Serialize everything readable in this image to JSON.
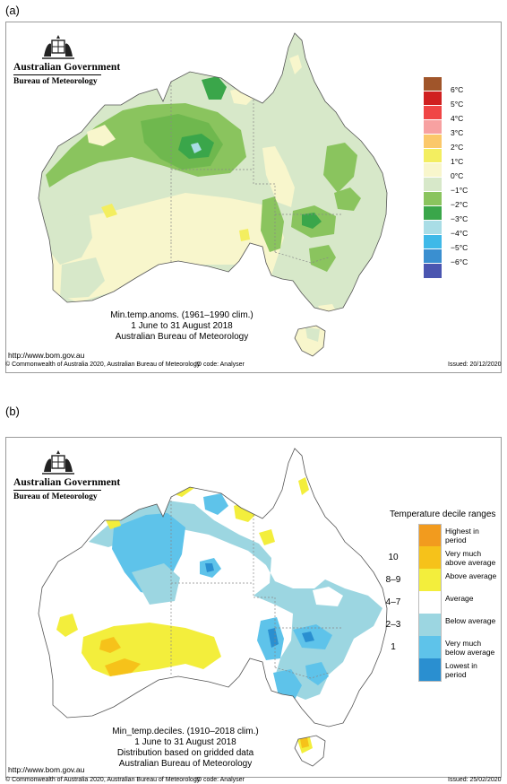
{
  "panel_a": {
    "label": "(a)",
    "logo": {
      "government": "Australian Government",
      "bureau": "Bureau of Meteorology"
    },
    "legend": [
      {
        "label": "6°C",
        "color": "#a0552a"
      },
      {
        "label": "5°C",
        "color": "#d02020"
      },
      {
        "label": "4°C",
        "color": "#f04545"
      },
      {
        "label": "3°C",
        "color": "#f7a1a1"
      },
      {
        "label": "2°C",
        "color": "#fbc86a"
      },
      {
        "label": "1°C",
        "color": "#f3ee60"
      },
      {
        "label": "0°C",
        "color": "#f8f6cc"
      },
      {
        "label": "−1°C",
        "color": "#d7e8c9"
      },
      {
        "label": "−2°C",
        "color": "#8ac45e"
      },
      {
        "label": "−3°C",
        "color": "#3aa64a"
      },
      {
        "label": "−4°C",
        "color": "#a9dde6"
      },
      {
        "label": "−5°C",
        "color": "#3fb9e8"
      },
      {
        "label": "−6°C",
        "color": "#3a8fd0"
      },
      {
        "label": "",
        "color": "#4a55b0"
      }
    ],
    "caption": [
      "Min.temp.anoms. (1961–1990 clim.)",
      "1 June to 31 August 2018",
      "Australian Bureau of Meteorology"
    ],
    "url": "http://www.bom.gov.au",
    "footer": {
      "copyright": "© Commonwealth of Australia 2020, Australian Bureau of Meteorology",
      "id_code": "ID code: Analyser",
      "issued": "Issued: 20/12/2020"
    }
  },
  "panel_b": {
    "label": "(b)",
    "logo": {
      "government": "Australian Government",
      "bureau": "Bureau of Meteorology"
    },
    "legend_title": "Temperature decile ranges",
    "legend": [
      {
        "number": "",
        "label": "Highest in period",
        "color": "#f29b1e"
      },
      {
        "number": "10",
        "label": "Very much above average",
        "color": "#f6c21a"
      },
      {
        "number": "8–9",
        "label": "Above average",
        "color": "#f3ee3c"
      },
      {
        "number": "4–7",
        "label": "Average",
        "color": "#ffffff"
      },
      {
        "number": "2–3",
        "label": "Below average",
        "color": "#9cd6e1"
      },
      {
        "number": "1",
        "label": "Very much below average",
        "color": "#5ec3ea"
      },
      {
        "number": "",
        "label": "Lowest in period",
        "color": "#2a8fd0"
      }
    ],
    "caption": [
      "Min_temp.deciles. (1910–2018 clim.)",
      "1 June to 31 August 2018",
      "Distribution based on gridded data",
      "Australian Bureau of Meteorology"
    ],
    "url": "http://www.bom.gov.au",
    "footer": {
      "copyright": "© Commonwealth of Australia 2020, Australian Bureau of Meteorology",
      "id_code": "ID code: Analyser",
      "issued": "Issued: 25/02/2020"
    }
  }
}
